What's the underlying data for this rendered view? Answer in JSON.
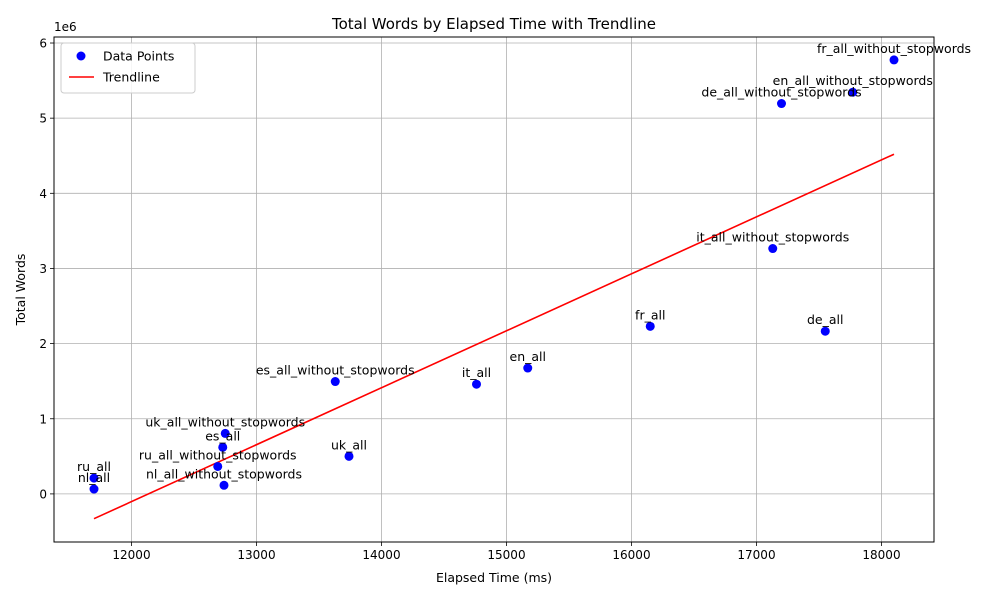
{
  "chart_data": {
    "type": "scatter",
    "title": "Total Words by Elapsed Time with Trendline",
    "xlabel": "Elapsed Time (ms)",
    "ylabel": "Total Words",
    "y_scale_label": "1e6",
    "xlim": [
      11380,
      18420
    ],
    "ylim": [
      -640000,
      6080000
    ],
    "x_ticks": [
      12000,
      13000,
      14000,
      15000,
      16000,
      17000,
      18000
    ],
    "y_ticks": [
      0,
      1000000,
      2000000,
      3000000,
      4000000,
      5000000,
      6000000
    ],
    "y_tick_labels": [
      "0",
      "1",
      "2",
      "3",
      "4",
      "5",
      "6"
    ],
    "grid": true,
    "legend_position": "top-left",
    "legend": {
      "points_label": "Data Points",
      "trend_label": "Trendline"
    },
    "colors": {
      "points": "#0000ff",
      "trend": "#ff0000",
      "grid": "#b0b0b0"
    },
    "points": [
      {
        "label": "ru_all",
        "x": 11700,
        "y": 210000
      },
      {
        "label": "nl_all",
        "x": 11700,
        "y": 65000
      },
      {
        "label": "ru_all_without_stopwords",
        "x": 12690,
        "y": 365000
      },
      {
        "label": "es_all",
        "x": 12730,
        "y": 620000
      },
      {
        "label": "uk_all_without_stopwords",
        "x": 12750,
        "y": 805000
      },
      {
        "label": "nl_all_without_stopwords",
        "x": 12740,
        "y": 115000
      },
      {
        "label": "es_all_without_stopwords",
        "x": 13630,
        "y": 1495000
      },
      {
        "label": "uk_all",
        "x": 13740,
        "y": 500000
      },
      {
        "label": "it_all",
        "x": 14760,
        "y": 1460000
      },
      {
        "label": "en_all",
        "x": 15170,
        "y": 1675000
      },
      {
        "label": "fr_all",
        "x": 16150,
        "y": 2230000
      },
      {
        "label": "it_all_without_stopwords",
        "x": 17130,
        "y": 3265000
      },
      {
        "label": "de_all_without_stopwords",
        "x": 17200,
        "y": 5195000
      },
      {
        "label": "de_all",
        "x": 17550,
        "y": 2165000
      },
      {
        "label": "en_all_without_stopwords",
        "x": 17770,
        "y": 5345000
      },
      {
        "label": "fr_all_without_stopwords",
        "x": 18100,
        "y": 5775000
      }
    ],
    "trendline": [
      {
        "x": 11700,
        "y": -330000
      },
      {
        "x": 18100,
        "y": 4520000
      }
    ]
  }
}
